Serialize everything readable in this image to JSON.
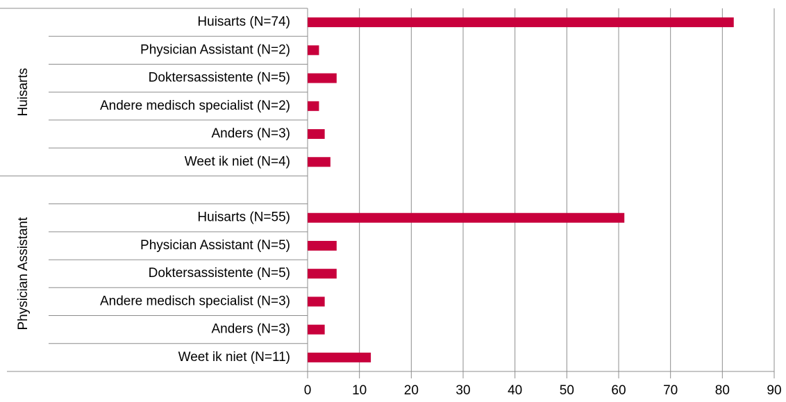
{
  "chart_data": {
    "type": "bar",
    "orientation": "horizontal",
    "color": "#c8003c",
    "groups": [
      {
        "name": "Huisarts",
        "categories": [
          "Huisarts (N=74)",
          "Physician Assistant  (N=2)",
          "Doktersassistente (N=5)",
          "Andere medisch specialist (N=2)",
          "Anders (N=3)",
          "Weet ik niet (N=4)"
        ],
        "values": [
          82.2,
          2.2,
          5.6,
          2.2,
          3.3,
          4.4
        ]
      },
      {
        "name": "Physician Assistant",
        "categories": [
          "Huisarts  (N=55)",
          "Physician Assistant (N=5)",
          "Doktersassistente (N=5)",
          "Andere medisch specialist (N=3)",
          "Anders (N=3)",
          "Weet ik niet (N=11)"
        ],
        "values": [
          61.1,
          5.6,
          5.6,
          3.3,
          3.3,
          12.2
        ]
      }
    ],
    "xlim": [
      0,
      90
    ],
    "xticks": [
      0,
      10,
      20,
      30,
      40,
      50,
      60,
      70,
      80,
      90
    ],
    "grid": true
  }
}
